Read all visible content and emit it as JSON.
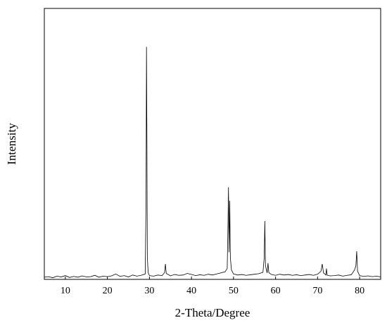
{
  "chart_data": {
    "type": "line",
    "xlabel": "2-Theta/Degree",
    "ylabel": "Intensity",
    "xlim": [
      5,
      85
    ],
    "xticks": [
      10,
      20,
      30,
      40,
      50,
      60,
      70,
      80
    ],
    "ylim": [
      0,
      100
    ],
    "x": [
      5,
      6,
      7,
      8,
      9,
      10,
      11,
      12,
      13,
      14,
      15,
      16,
      17,
      18,
      19,
      20,
      21,
      22,
      23,
      24,
      25,
      26,
      27,
      28,
      29.0,
      29.2,
      29.3,
      29.4,
      29.5,
      29.7,
      30,
      31,
      32,
      33,
      33.6,
      33.8,
      34.0,
      35,
      36,
      37,
      38,
      39,
      40,
      41,
      42,
      43,
      44,
      45,
      46,
      47,
      48,
      48.5,
      48.7,
      48.8,
      48.95,
      49.1,
      49.25,
      49.5,
      50,
      51,
      52,
      53,
      54,
      55,
      56,
      57,
      57.3,
      57.45,
      57.6,
      58,
      58.2,
      58.4,
      59,
      60,
      61,
      62,
      63,
      64,
      65,
      66,
      67,
      68,
      69,
      70,
      70.8,
      71.1,
      71.4,
      72,
      72.1,
      72.3,
      73,
      74,
      75,
      76,
      77,
      78,
      78.8,
      79.1,
      79.3,
      79.5,
      80,
      81,
      82,
      83,
      84,
      85
    ],
    "series": [
      {
        "color": "#000000",
        "values": [
          0.8,
          1.0,
          0.6,
          1.2,
          0.9,
          1.4,
          0.7,
          1.1,
          0.8,
          1.3,
          0.9,
          1.0,
          1.5,
          0.8,
          1.2,
          1.0,
          1.3,
          2.0,
          1.1,
          1.4,
          0.9,
          1.6,
          1.2,
          1.5,
          2.0,
          30,
          85.8,
          52,
          8,
          2.5,
          1.4,
          1.2,
          1.6,
          1.4,
          2.5,
          5.7,
          2.2,
          1.3,
          1.8,
          1.5,
          1.6,
          2.2,
          1.8,
          1.4,
          1.7,
          1.5,
          1.9,
          1.6,
          2.0,
          2.4,
          2.8,
          4,
          22,
          34,
          10,
          29,
          8,
          3.5,
          2.0,
          1.6,
          1.8,
          1.5,
          1.7,
          1.9,
          2.1,
          2.6,
          8,
          21.5,
          5,
          2.4,
          6,
          2.5,
          1.8,
          1.5,
          1.9,
          1.6,
          1.8,
          1.5,
          1.7,
          1.4,
          1.6,
          1.8,
          1.5,
          1.9,
          3,
          5.7,
          2.4,
          1.6,
          4,
          1.5,
          1.3,
          1.4,
          1.6,
          1.2,
          1.5,
          1.7,
          3.5,
          5,
          10.4,
          3,
          1.4,
          1.1,
          1.3,
          1.0,
          1.2,
          0.9
        ]
      }
    ]
  }
}
